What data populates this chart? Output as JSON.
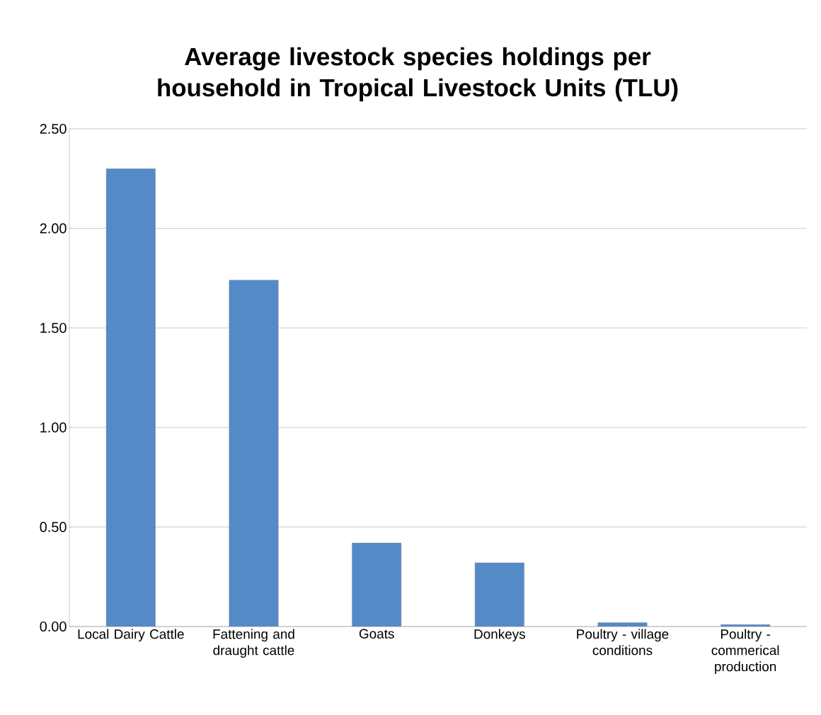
{
  "chart_data": {
    "type": "bar",
    "title": "Average livestock species holdings per household in Tropical Livestock Units (TLU)",
    "categories": [
      "Local Dairy Cattle",
      "Fattening and draught cattle",
      "Goats",
      "Donkeys",
      "Poultry - village conditions",
      "Poultry - commerical production"
    ],
    "values": [
      2.3,
      1.74,
      0.42,
      0.32,
      0.02,
      0.01
    ],
    "color": "#558ac9",
    "ylim": [
      0,
      2.5
    ],
    "yticks": [
      {
        "value": 0,
        "label": "0.00"
      },
      {
        "value": 0.5,
        "label": "0.50"
      },
      {
        "value": 1,
        "label": "1.00"
      },
      {
        "value": 1.5,
        "label": "1.50"
      },
      {
        "value": 2,
        "label": "2.00"
      },
      {
        "value": 2.5,
        "label": "2.50"
      }
    ],
    "grid": "y"
  }
}
